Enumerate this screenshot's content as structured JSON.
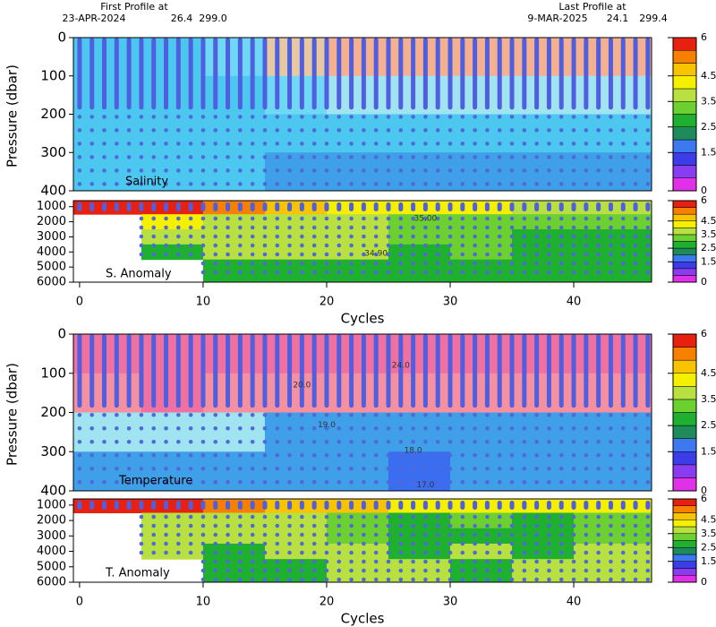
{
  "header": {
    "first_label": "First Profile at",
    "first_date": "23-APR-2024",
    "first_lat": "26.4",
    "first_lon": "299.0",
    "last_label": "Last Profile at",
    "last_date": "9-MAR-2025",
    "last_lat": "24.1",
    "last_lon": "299.4"
  },
  "colorbar": {
    "levels": [
      0,
      0.5,
      1,
      1.5,
      2,
      2.5,
      3,
      3.5,
      4,
      4.5,
      5,
      5.5,
      6
    ],
    "colors": [
      "#e030e8",
      "#8a3cf0",
      "#3c3ce8",
      "#3c78f0",
      "#1e8c5a",
      "#20b030",
      "#6cd030",
      "#b8e040",
      "#f4f000",
      "#f8c400",
      "#f88000",
      "#e82010",
      "#a00000"
    ],
    "ticks": [
      0,
      1.5,
      2.5,
      3.5,
      4.5,
      6
    ]
  },
  "chart_data": [
    {
      "type": "heatmap",
      "label": "Salinity",
      "ylabel": "Pressure (dbar)",
      "xlim": [
        -0.5,
        46.3
      ],
      "ylim": [
        0,
        400
      ],
      "yticks": [
        0,
        100,
        200,
        300,
        400
      ],
      "x": [
        -0.5,
        5,
        10,
        15,
        20,
        25,
        30,
        35,
        40,
        46.3
      ],
      "y": [
        0,
        100,
        200,
        300,
        400
      ],
      "field_colors": [
        "#e040e0",
        "#a050f0",
        "#3a6df0",
        "#3f9fe8",
        "#4cc8f0",
        "#6fd8f5",
        "#9fe4f0",
        "#c8d8d0",
        "#e8c8a0",
        "#f5b090",
        "#f590a0",
        "#f070a0"
      ],
      "values": [
        [
          2,
          2,
          2.5,
          4,
          4.5,
          4.5,
          4.5,
          4.5,
          4.5
        ],
        [
          2,
          2,
          2,
          2.5,
          3,
          3,
          3,
          3,
          3
        ],
        [
          2,
          2,
          2,
          2,
          2,
          2,
          2,
          2,
          2
        ],
        [
          2,
          2,
          2,
          1.5,
          1.5,
          1.5,
          1.5,
          1.5,
          1.5
        ]
      ]
    },
    {
      "type": "heatmap",
      "label": "S. Anomaly",
      "xlabel": "Cycles",
      "xlim": [
        -0.5,
        46.3
      ],
      "ylim": [
        600,
        6000
      ],
      "xticks": [
        0,
        10,
        20,
        30,
        40
      ],
      "yticks": [
        1000,
        2000,
        3000,
        4000,
        5000,
        6000
      ],
      "x": [
        -0.5,
        5,
        10,
        15,
        20,
        25,
        30,
        35,
        40,
        46.3
      ],
      "y": [
        600,
        1500,
        2500,
        3500,
        4500,
        6000
      ],
      "values": [
        [
          5.5,
          5.5,
          5,
          4.5,
          4,
          4,
          4,
          3.5,
          3.5
        ],
        [
          null,
          4,
          3.5,
          3.5,
          3.5,
          3,
          3,
          3,
          3
        ],
        [
          null,
          3.5,
          3.5,
          3.5,
          3.5,
          3,
          3,
          2.5,
          2.5
        ],
        [
          null,
          2.5,
          3.5,
          3.5,
          3.5,
          2.5,
          3,
          2.5,
          2.5
        ],
        [
          null,
          null,
          2.5,
          2.5,
          2.5,
          2.5,
          2.5,
          2.5,
          2.5
        ]
      ],
      "annotations": [
        {
          "text": "35.00",
          "x": 28,
          "y": 1800
        },
        {
          "text": "34.90",
          "x": 24,
          "y": 4100
        }
      ]
    },
    {
      "type": "heatmap",
      "label": "Temperature",
      "ylabel": "Pressure (dbar)",
      "xlim": [
        -0.5,
        46.3
      ],
      "ylim": [
        0,
        400
      ],
      "yticks": [
        0,
        100,
        200,
        300,
        400
      ],
      "x": [
        -0.5,
        5,
        10,
        15,
        20,
        25,
        30,
        35,
        40,
        46.3
      ],
      "y": [
        0,
        100,
        200,
        300,
        400
      ],
      "field_colors": [
        "#e040e0",
        "#a050f0",
        "#3a6df0",
        "#3f9fe8",
        "#4cc8f0",
        "#6fd8f5",
        "#9fe4f0",
        "#c8d8d0",
        "#e8c8a0",
        "#f5b090",
        "#f590a0",
        "#f070a0"
      ],
      "values": [
        [
          5.5,
          5.5,
          5.5,
          5.5,
          5.5,
          5.5,
          5.5,
          5.5,
          5.5
        ],
        [
          5,
          5.5,
          5,
          5,
          5,
          5,
          5,
          5,
          5
        ],
        [
          3,
          3,
          3,
          1.5,
          1.5,
          1.5,
          1.5,
          1.5,
          1.5
        ],
        [
          1.5,
          1.5,
          1.5,
          1.5,
          1.5,
          1,
          1.5,
          1.5,
          1.5
        ]
      ],
      "annotations": [
        {
          "text": "24.0",
          "x": 26,
          "y": 80
        },
        {
          "text": "20.0",
          "x": 18,
          "y": 130
        },
        {
          "text": "19.0",
          "x": 20,
          "y": 232
        },
        {
          "text": "18.0",
          "x": 27,
          "y": 297
        },
        {
          "text": "17.0",
          "x": 28,
          "y": 385
        }
      ]
    },
    {
      "type": "heatmap",
      "label": "T. Anomaly",
      "xlabel": "Cycles",
      "xlim": [
        -0.5,
        46.3
      ],
      "ylim": [
        600,
        6000
      ],
      "xticks": [
        0,
        10,
        20,
        30,
        40
      ],
      "yticks": [
        1000,
        2000,
        3000,
        4000,
        5000,
        6000
      ],
      "x": [
        -0.5,
        5,
        10,
        15,
        20,
        25,
        30,
        35,
        40,
        46.3
      ],
      "y": [
        600,
        1500,
        2500,
        3500,
        4500,
        6000
      ],
      "values": [
        [
          5.5,
          5.5,
          5,
          4.5,
          4.5,
          4,
          4,
          4,
          4
        ],
        [
          null,
          3.5,
          3.5,
          3.5,
          3,
          2.5,
          3,
          2.5,
          3
        ],
        [
          null,
          3.5,
          3.5,
          3.5,
          3,
          2.5,
          2.5,
          2.5,
          3
        ],
        [
          null,
          3.5,
          2.5,
          3.5,
          3.5,
          2.5,
          3.5,
          2.5,
          3.5
        ],
        [
          null,
          null,
          2.5,
          2.5,
          3.5,
          3.5,
          2.5,
          3.5,
          3.5
        ]
      ]
    }
  ]
}
